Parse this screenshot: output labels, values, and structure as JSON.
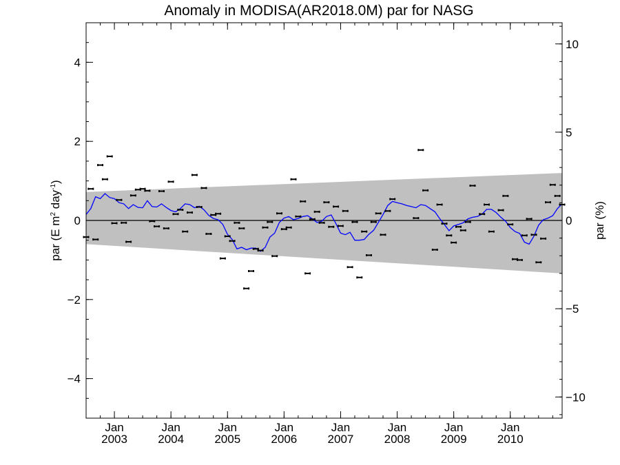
{
  "chart_data": {
    "type": "scatter",
    "title": "Anomaly in MODISA(AR2018.0M) par for NASG",
    "ylabel_left": "par (E m",
    "ylabel_left_sup1": "2",
    "ylabel_left_mid": " day",
    "ylabel_left_sup2": "-1",
    "ylabel_left_end": ")",
    "ylabel_right": "par (%)",
    "xlim": [
      "2002-07",
      "2010-12"
    ],
    "ylim_left": [
      -5,
      5
    ],
    "ylim_right": [
      -11.2,
      11.2
    ],
    "yticks_left": [
      {
        "v": 4,
        "label": "4"
      },
      {
        "v": 2,
        "label": "2"
      },
      {
        "v": 0,
        "label": "0"
      },
      {
        "v": -2,
        "label": "−2"
      },
      {
        "v": -4,
        "label": "−4"
      }
    ],
    "yticks_right": [
      {
        "v": 10,
        "label": "10"
      },
      {
        "v": 5,
        "label": "5"
      },
      {
        "v": 0,
        "label": "0"
      },
      {
        "v": -5,
        "label": "−5"
      },
      {
        "v": -10,
        "label": "−10"
      }
    ],
    "xticks": [
      {
        "date": "2003-01",
        "month": "Jan",
        "year": "2003"
      },
      {
        "date": "2004-01",
        "month": "Jan",
        "year": "2004"
      },
      {
        "date": "2005-01",
        "month": "Jan",
        "year": "2005"
      },
      {
        "date": "2006-01",
        "month": "Jan",
        "year": "2006"
      },
      {
        "date": "2007-01",
        "month": "Jan",
        "year": "2007"
      },
      {
        "date": "2008-01",
        "month": "Jan",
        "year": "2008"
      },
      {
        "date": "2009-01",
        "month": "Jan",
        "year": "2009"
      },
      {
        "date": "2010-01",
        "month": "Jan",
        "year": "2010"
      }
    ],
    "grid": false,
    "colors": {
      "band": "#c0c0c0",
      "running_mean": "#0000ff",
      "points": "#000000"
    },
    "band": {
      "upper": [
        {
          "date": "2002-07",
          "y": 0.72
        },
        {
          "date": "2010-12",
          "y": 1.2
        }
      ],
      "lower": [
        {
          "date": "2002-07",
          "y": -0.6
        },
        {
          "date": "2010-12",
          "y": -1.34
        }
      ]
    },
    "points": [
      {
        "date": "2002-07",
        "y": -0.42
      },
      {
        "date": "2002-08",
        "y": 0.8
      },
      {
        "date": "2002-09",
        "y": -0.48
      },
      {
        "date": "2002-10",
        "y": 1.4
      },
      {
        "date": "2002-11",
        "y": 1.04
      },
      {
        "date": "2002-12",
        "y": 1.62
      },
      {
        "date": "2003-01",
        "y": -0.07
      },
      {
        "date": "2003-02",
        "y": 0.52
      },
      {
        "date": "2003-03",
        "y": -0.06
      },
      {
        "date": "2003-04",
        "y": -0.54
      },
      {
        "date": "2003-05",
        "y": 0.63
      },
      {
        "date": "2003-06",
        "y": 0.78
      },
      {
        "date": "2003-07",
        "y": 0.8
      },
      {
        "date": "2003-08",
        "y": 0.75
      },
      {
        "date": "2003-09",
        "y": -0.02
      },
      {
        "date": "2003-10",
        "y": -0.15
      },
      {
        "date": "2003-11",
        "y": 0.74
      },
      {
        "date": "2003-12",
        "y": -0.2
      },
      {
        "date": "2004-01",
        "y": 0.98
      },
      {
        "date": "2004-02",
        "y": 0.16
      },
      {
        "date": "2004-03",
        "y": 0.27
      },
      {
        "date": "2004-04",
        "y": -0.28
      },
      {
        "date": "2004-05",
        "y": 0.2
      },
      {
        "date": "2004-06",
        "y": 1.15
      },
      {
        "date": "2004-07",
        "y": 0.34
      },
      {
        "date": "2004-08",
        "y": 0.82
      },
      {
        "date": "2004-09",
        "y": -0.34
      },
      {
        "date": "2004-10",
        "y": 0.14
      },
      {
        "date": "2004-11",
        "y": 0.17
      },
      {
        "date": "2004-12",
        "y": -0.96
      },
      {
        "date": "2005-01",
        "y": -0.4
      },
      {
        "date": "2005-02",
        "y": -0.52
      },
      {
        "date": "2005-03",
        "y": -0.06
      },
      {
        "date": "2005-04",
        "y": -0.2
      },
      {
        "date": "2005-05",
        "y": -1.72
      },
      {
        "date": "2005-06",
        "y": -1.28
      },
      {
        "date": "2005-07",
        "y": -0.72
      },
      {
        "date": "2005-08",
        "y": -0.76
      },
      {
        "date": "2005-09",
        "y": -0.18
      },
      {
        "date": "2005-10",
        "y": -0.04
      },
      {
        "date": "2005-11",
        "y": -0.9
      },
      {
        "date": "2005-12",
        "y": 0.18
      },
      {
        "date": "2006-01",
        "y": -0.22
      },
      {
        "date": "2006-02",
        "y": -0.18
      },
      {
        "date": "2006-03",
        "y": 1.04
      },
      {
        "date": "2006-04",
        "y": 0.1
      },
      {
        "date": "2006-05",
        "y": 0.48
      },
      {
        "date": "2006-06",
        "y": -1.34
      },
      {
        "date": "2006-07",
        "y": 0.03
      },
      {
        "date": "2006-08",
        "y": 0.22
      },
      {
        "date": "2006-09",
        "y": -0.06
      },
      {
        "date": "2006-10",
        "y": 0.46
      },
      {
        "date": "2006-11",
        "y": -0.16
      },
      {
        "date": "2006-12",
        "y": 0.35
      },
      {
        "date": "2007-01",
        "y": -0.14
      },
      {
        "date": "2007-02",
        "y": 0.24
      },
      {
        "date": "2007-03",
        "y": -1.18
      },
      {
        "date": "2007-04",
        "y": -0.04
      },
      {
        "date": "2007-05",
        "y": -1.44
      },
      {
        "date": "2007-06",
        "y": -0.28
      },
      {
        "date": "2007-07",
        "y": -0.88
      },
      {
        "date": "2007-08",
        "y": -0.04
      },
      {
        "date": "2007-09",
        "y": 0.18
      },
      {
        "date": "2007-10",
        "y": -0.36
      },
      {
        "date": "2007-11",
        "y": 0.24
      },
      {
        "date": "2007-12",
        "y": 0.54
      },
      {
        "date": "2008-05",
        "y": 0.06
      },
      {
        "date": "2008-06",
        "y": 1.78
      },
      {
        "date": "2008-07",
        "y": 0.76
      },
      {
        "date": "2008-09",
        "y": -0.74
      },
      {
        "date": "2008-10",
        "y": 0.4
      },
      {
        "date": "2008-11",
        "y": -0.08
      },
      {
        "date": "2008-12",
        "y": -0.38
      },
      {
        "date": "2009-01",
        "y": -0.56
      },
      {
        "date": "2009-02",
        "y": -0.16
      },
      {
        "date": "2009-03",
        "y": -0.25
      },
      {
        "date": "2009-04",
        "y": -0.04
      },
      {
        "date": "2009-05",
        "y": 0.88
      },
      {
        "date": "2009-07",
        "y": 0.16
      },
      {
        "date": "2009-08",
        "y": 0.4
      },
      {
        "date": "2009-09",
        "y": -0.28
      },
      {
        "date": "2009-11",
        "y": 0.26
      },
      {
        "date": "2009-12",
        "y": 0.62
      },
      {
        "date": "2010-01",
        "y": -0.1
      },
      {
        "date": "2010-02",
        "y": -0.98
      },
      {
        "date": "2010-03",
        "y": -1.0
      },
      {
        "date": "2010-04",
        "y": -0.38
      },
      {
        "date": "2010-05",
        "y": 0.04
      },
      {
        "date": "2010-06",
        "y": -0.36
      },
      {
        "date": "2010-07",
        "y": -1.06
      },
      {
        "date": "2010-08",
        "y": -0.46
      },
      {
        "date": "2010-09",
        "y": 0.46
      },
      {
        "date": "2010-10",
        "y": 0.9
      },
      {
        "date": "2010-11",
        "y": 0.62
      },
      {
        "date": "2010-12",
        "y": 0.4
      }
    ],
    "running_mean": [
      {
        "date": "2002-07",
        "y": 0.15
      },
      {
        "date": "2002-08",
        "y": 0.3
      },
      {
        "date": "2002-09",
        "y": 0.6
      },
      {
        "date": "2002-10",
        "y": 0.55
      },
      {
        "date": "2002-11",
        "y": 0.68
      },
      {
        "date": "2002-12",
        "y": 0.58
      },
      {
        "date": "2003-01",
        "y": 0.55
      },
      {
        "date": "2003-02",
        "y": 0.45
      },
      {
        "date": "2003-03",
        "y": 0.42
      },
      {
        "date": "2003-04",
        "y": 0.3
      },
      {
        "date": "2003-05",
        "y": 0.4
      },
      {
        "date": "2003-06",
        "y": 0.33
      },
      {
        "date": "2003-07",
        "y": 0.32
      },
      {
        "date": "2003-08",
        "y": 0.5
      },
      {
        "date": "2003-09",
        "y": 0.35
      },
      {
        "date": "2003-10",
        "y": 0.34
      },
      {
        "date": "2003-11",
        "y": 0.42
      },
      {
        "date": "2003-12",
        "y": 0.33
      },
      {
        "date": "2004-01",
        "y": 0.25
      },
      {
        "date": "2004-02",
        "y": 0.22
      },
      {
        "date": "2004-03",
        "y": 0.3
      },
      {
        "date": "2004-04",
        "y": 0.42
      },
      {
        "date": "2004-05",
        "y": 0.4
      },
      {
        "date": "2004-06",
        "y": 0.32
      },
      {
        "date": "2004-07",
        "y": 0.36
      },
      {
        "date": "2004-08",
        "y": 0.27
      },
      {
        "date": "2004-09",
        "y": 0.13
      },
      {
        "date": "2004-10",
        "y": 0.05
      },
      {
        "date": "2004-11",
        "y": 0.02
      },
      {
        "date": "2004-12",
        "y": -0.1
      },
      {
        "date": "2005-01",
        "y": -0.35
      },
      {
        "date": "2005-02",
        "y": -0.48
      },
      {
        "date": "2005-03",
        "y": -0.72
      },
      {
        "date": "2005-04",
        "y": -0.68
      },
      {
        "date": "2005-05",
        "y": -0.74
      },
      {
        "date": "2005-06",
        "y": -0.7
      },
      {
        "date": "2005-07",
        "y": -0.7
      },
      {
        "date": "2005-08",
        "y": -0.78
      },
      {
        "date": "2005-09",
        "y": -0.68
      },
      {
        "date": "2005-10",
        "y": -0.42
      },
      {
        "date": "2005-11",
        "y": -0.32
      },
      {
        "date": "2005-12",
        "y": -0.05
      },
      {
        "date": "2006-01",
        "y": 0.06
      },
      {
        "date": "2006-02",
        "y": 0.1
      },
      {
        "date": "2006-03",
        "y": 0.02
      },
      {
        "date": "2006-04",
        "y": 0.05
      },
      {
        "date": "2006-05",
        "y": 0.1
      },
      {
        "date": "2006-06",
        "y": 0.12
      },
      {
        "date": "2006-07",
        "y": 0.04
      },
      {
        "date": "2006-08",
        "y": -0.05
      },
      {
        "date": "2006-09",
        "y": -0.02
      },
      {
        "date": "2006-10",
        "y": 0.1
      },
      {
        "date": "2006-11",
        "y": 0.14
      },
      {
        "date": "2006-12",
        "y": -0.08
      },
      {
        "date": "2007-01",
        "y": -0.32
      },
      {
        "date": "2007-02",
        "y": -0.36
      },
      {
        "date": "2007-03",
        "y": -0.3
      },
      {
        "date": "2007-04",
        "y": -0.5
      },
      {
        "date": "2007-05",
        "y": -0.5
      },
      {
        "date": "2007-06",
        "y": -0.48
      },
      {
        "date": "2007-07",
        "y": -0.35
      },
      {
        "date": "2007-08",
        "y": -0.25
      },
      {
        "date": "2007-09",
        "y": -0.05
      },
      {
        "date": "2007-10",
        "y": 0.15
      },
      {
        "date": "2007-11",
        "y": 0.38
      },
      {
        "date": "2007-12",
        "y": 0.48
      },
      {
        "date": "2008-01",
        "y": 0.45
      },
      {
        "date": "2008-02",
        "y": 0.42
      },
      {
        "date": "2008-03",
        "y": 0.38
      },
      {
        "date": "2008-04",
        "y": 0.35
      },
      {
        "date": "2008-05",
        "y": 0.32
      },
      {
        "date": "2008-06",
        "y": 0.4
      },
      {
        "date": "2008-07",
        "y": 0.38
      },
      {
        "date": "2008-08",
        "y": 0.3
      },
      {
        "date": "2008-09",
        "y": 0.22
      },
      {
        "date": "2008-10",
        "y": 0.05
      },
      {
        "date": "2008-11",
        "y": -0.1
      },
      {
        "date": "2008-12",
        "y": -0.26
      },
      {
        "date": "2009-01",
        "y": -0.14
      },
      {
        "date": "2009-02",
        "y": -0.1
      },
      {
        "date": "2009-03",
        "y": -0.06
      },
      {
        "date": "2009-04",
        "y": 0.04
      },
      {
        "date": "2009-05",
        "y": 0.08
      },
      {
        "date": "2009-06",
        "y": 0.1
      },
      {
        "date": "2009-07",
        "y": 0.16
      },
      {
        "date": "2009-08",
        "y": 0.28
      },
      {
        "date": "2009-09",
        "y": 0.28
      },
      {
        "date": "2009-10",
        "y": 0.2
      },
      {
        "date": "2009-11",
        "y": 0.08
      },
      {
        "date": "2009-12",
        "y": -0.02
      },
      {
        "date": "2010-01",
        "y": -0.18
      },
      {
        "date": "2010-02",
        "y": -0.28
      },
      {
        "date": "2010-03",
        "y": -0.33
      },
      {
        "date": "2010-04",
        "y": -0.55
      },
      {
        "date": "2010-05",
        "y": -0.6
      },
      {
        "date": "2010-06",
        "y": -0.4
      },
      {
        "date": "2010-07",
        "y": -0.12
      },
      {
        "date": "2010-08",
        "y": 0.02
      },
      {
        "date": "2010-09",
        "y": 0.06
      },
      {
        "date": "2010-10",
        "y": 0.12
      },
      {
        "date": "2010-11",
        "y": 0.3
      },
      {
        "date": "2010-12",
        "y": 0.42
      }
    ]
  }
}
